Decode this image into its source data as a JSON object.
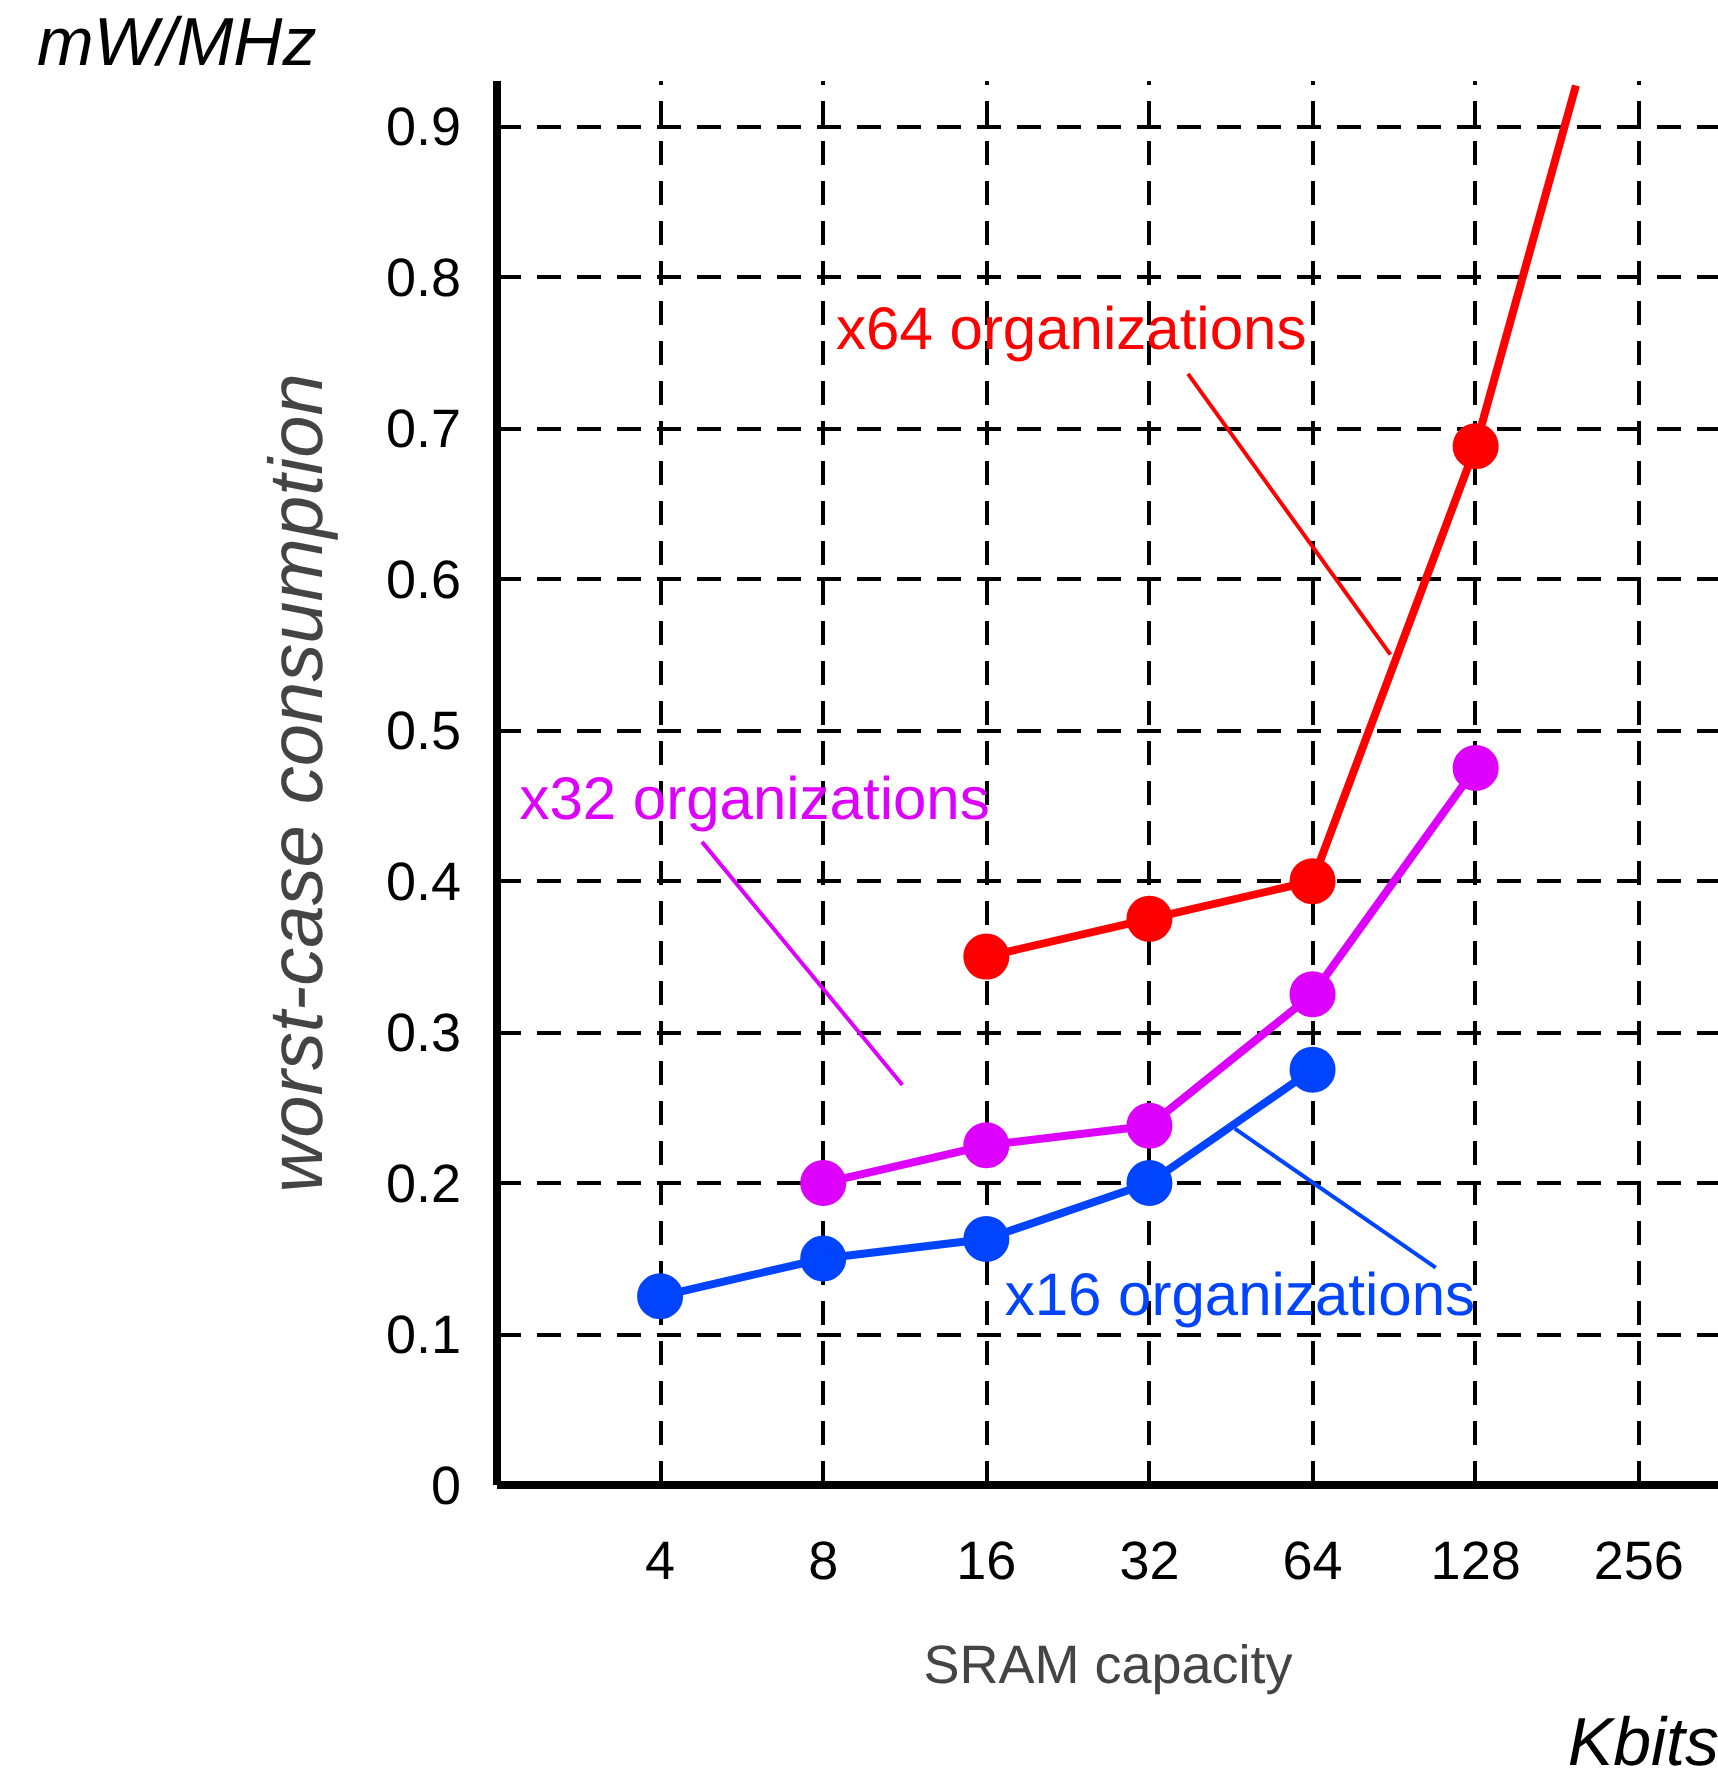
{
  "chart_data": {
    "type": "line",
    "xlabel": "SRAM capacity",
    "ylabel": "worst-case consumption",
    "annotations": [
      "mW/MHz",
      "Kbits"
    ],
    "log": "x",
    "xlim": [
      2,
      360
    ],
    "xticks": [
      4,
      8,
      16,
      32,
      64,
      128,
      256
    ],
    "ylim": [
      0,
      0.93
    ],
    "yticks": [
      0,
      0.1,
      0.2,
      0.3,
      0.4,
      0.5,
      0.6,
      0.7,
      0.8,
      0.9
    ],
    "grid": true,
    "marker": "circle",
    "line_style": "solid",
    "series": [
      {
        "name": "x64 organizations",
        "color": "#ff0000",
        "x": [
          16,
          32,
          64,
          128
        ],
        "values": [
          0.35,
          0.375,
          0.4,
          0.688
        ]
      },
      {
        "color": "#ff0000",
        "x": [
          128,
          196
        ],
        "values": [
          0.688,
          0.927
        ],
        "marker": "none"
      },
      {
        "name": "x32 organizations",
        "color": "#dd00ff",
        "x": [
          8,
          16,
          32,
          64,
          128
        ],
        "values": [
          0.2,
          0.225,
          0.238,
          0.325,
          0.475
        ]
      },
      {
        "name": "x16 organizations",
        "color": "#0044ff",
        "x": [
          4,
          8,
          16,
          32,
          64
        ],
        "values": [
          0.125,
          0.15,
          0.163,
          0.2,
          0.275
        ]
      }
    ]
  }
}
